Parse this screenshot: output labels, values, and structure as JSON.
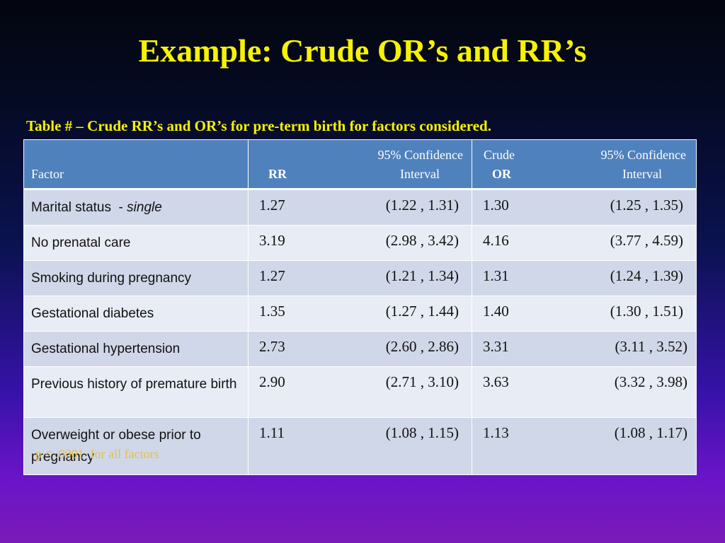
{
  "title": "Example: Crude OR’s and RR’s",
  "caption": "Table # – Crude RR’s and OR’s for pre-term birth for factors considered.",
  "table": {
    "headers": {
      "factor": "Factor",
      "rr": "RR",
      "rr_ci_line1": "95% Confidence",
      "rr_ci_line2": "Interval",
      "or_line1": "Crude",
      "or_line2": "OR",
      "or_ci_line1": "95% Confidence",
      "or_ci_line2": "Interval"
    },
    "rows": [
      {
        "factor": "Marital status  - ",
        "factor_italic": "single",
        "rr": "1.27",
        "rr_ci": "(1.22 , 1.31)",
        "or": "1.30",
        "or_ci": "(1.25 , 1.35)"
      },
      {
        "factor": "No prenatal care",
        "factor_italic": "",
        "rr": "3.19",
        "rr_ci": "(2.98 , 3.42)",
        "or": "4.16",
        "or_ci": "(3.77 , 4.59)"
      },
      {
        "factor": "Smoking during pregnancy",
        "factor_italic": "",
        "rr": "1.27",
        "rr_ci": "(1.21 , 1.34)",
        "or": "1.31",
        "or_ci": "(1.24 , 1.39)"
      },
      {
        "factor": "Gestational diabetes",
        "factor_italic": "",
        "rr": "1.35",
        "rr_ci": "(1.27 , 1.44)",
        "or": "1.40",
        "or_ci": "(1.30 , 1.51)"
      },
      {
        "factor": "Gestational hypertension",
        "factor_italic": "",
        "rr": "2.73",
        "rr_ci": "(2.60 , 2.86)",
        "or": "3.31",
        "or_ci": "(3.11 , 3.52)"
      },
      {
        "factor": "Previous history of premature birth",
        "factor_italic": "",
        "rr": "2.90",
        "rr_ci": "(2.71 , 3.10)",
        "or": "3.63",
        "or_ci": "(3.32 , 3.98)"
      },
      {
        "factor": "Overweight or obese prior to pregnancy",
        "factor_italic": "",
        "rr": "1.11",
        "rr_ci": "(1.08 , 1.15)",
        "or": "1.13",
        "or_ci": "(1.08 , 1.17)"
      }
    ]
  },
  "footnote": "p < .0001  for all factors",
  "colors": {
    "title": "#f7f200",
    "header_bg": "#4f81bd",
    "row_odd": "#cfd7e8",
    "row_even": "#e8ecf4",
    "footnote": "#e6c04a"
  }
}
